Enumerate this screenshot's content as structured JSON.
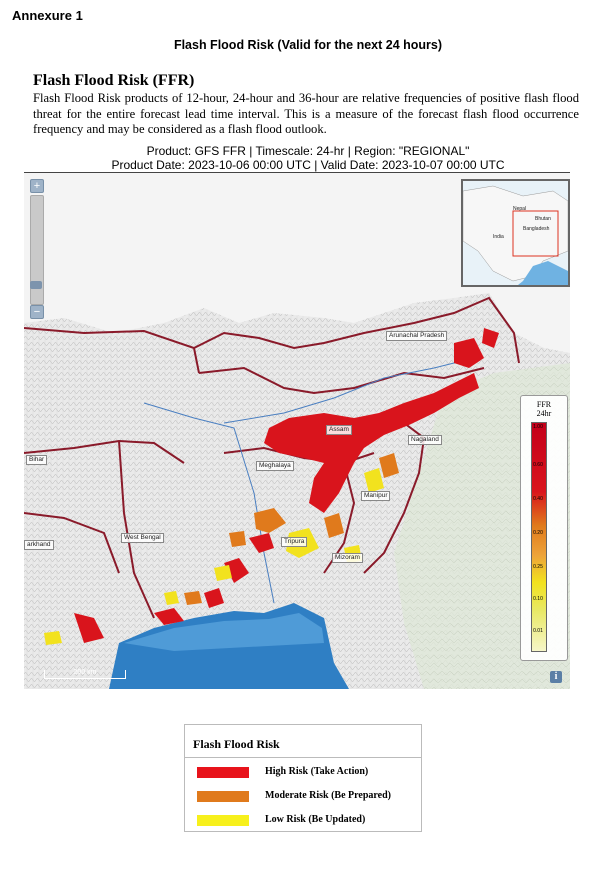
{
  "header": {
    "annexure": "Annexure 1",
    "title": "Flash Flood Risk (Valid for the next 24 hours)"
  },
  "product": {
    "heading": "Flash Flood Risk (FFR)",
    "description": "Flash Flood Risk products of 12-hour, 24-hour and 36-hour are relative frequencies of positive flash flood threat for the entire forecast lead time interval. This is a measure of the forecast flash flood occurrence frequency and may be considered as a flash flood outlook.",
    "meta_line1": "Product: GFS FFR  |  Timescale: 24-hr  |  Region: \"REGIONAL\"",
    "meta_line2": "Product Date: 2023-10-06 00:00 UTC  |  Valid Date: 2023-10-07 00:00 UTC"
  },
  "map": {
    "zoom_in": "+",
    "zoom_out": "−",
    "info": "i",
    "scale_label": "200 km",
    "zoom_level_fraction": 0.85,
    "colors": {
      "land": "#ededed",
      "sea": "#2f7fc4",
      "border": "#8a1a2a",
      "river": "#4a7fc1",
      "high": "#d9141c",
      "moderate": "#e07a1c",
      "low": "#f2e21e"
    },
    "labels": [
      {
        "name": "arunachal",
        "text": "Arunachal Pradesh"
      },
      {
        "name": "assam",
        "text": "Assam"
      },
      {
        "name": "nagaland",
        "text": "Nagaland"
      },
      {
        "name": "meghalaya",
        "text": "Meghalaya"
      },
      {
        "name": "bihar",
        "text": "Bihar"
      },
      {
        "name": "manipur",
        "text": "Manipur"
      },
      {
        "name": "west-bengal",
        "text": "West Bengal"
      },
      {
        "name": "tripura",
        "text": "Tripura"
      },
      {
        "name": "mizoram",
        "text": "Mizoram"
      },
      {
        "name": "jharkhand",
        "text": "arkhand"
      }
    ],
    "inset_labels": [
      {
        "name": "nepal",
        "text": "Nepal"
      },
      {
        "name": "bhutan",
        "text": "Bhutan"
      },
      {
        "name": "bangladesh",
        "text": "Bangladesh"
      },
      {
        "name": "india",
        "text": "India"
      }
    ],
    "legend": {
      "title_line1": "FFR",
      "title_line2": "24hr",
      "ticks": [
        "1.00",
        "0.60",
        "0.40",
        "0.20",
        "0.25",
        "0.10",
        "0.01"
      ]
    }
  },
  "key": {
    "title": "Flash Flood Risk",
    "items": [
      {
        "label": "High Risk (Take Action)",
        "color": "#e8131b"
      },
      {
        "label": "Moderate Risk (Be Prepared)",
        "color": "#e07a1c"
      },
      {
        "label": "Low Risk (Be Updated)",
        "color": "#f7f01c"
      }
    ]
  }
}
